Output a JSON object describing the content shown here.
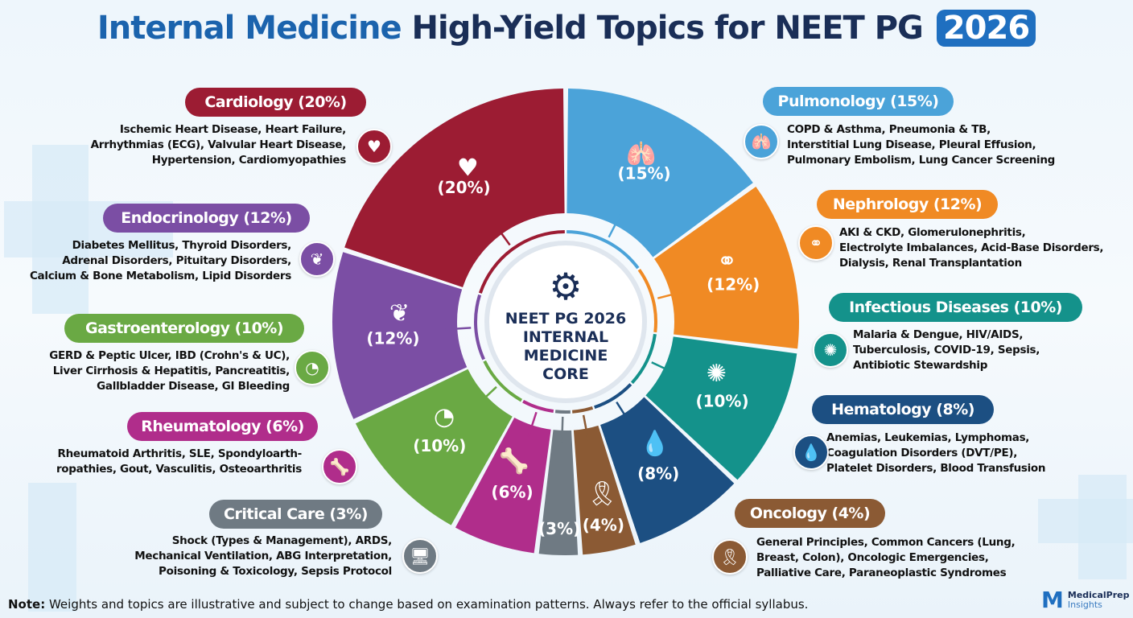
{
  "title": {
    "part1": "Internal Medicine",
    "part2": "High-Yield Topics for NEET PG",
    "year": "2026"
  },
  "center": {
    "icon": "gears-icon",
    "lines": [
      "NEET PG 2026",
      "INTERNAL",
      "MEDICINE",
      "CORE"
    ]
  },
  "segments": [
    {
      "key": "pulmonology",
      "percent": 15,
      "label": "(15%)",
      "color": "#4ba3d9",
      "icon": "lungs-icon",
      "glyph": "🫁"
    },
    {
      "key": "nephrology",
      "percent": 12,
      "label": "(12%)",
      "color": "#f08a24",
      "icon": "kidney-icon",
      "glyph": "⚭"
    },
    {
      "key": "infectious",
      "percent": 10,
      "label": "(10%)",
      "color": "#14928b",
      "icon": "microbe-icon",
      "glyph": "✺"
    },
    {
      "key": "hematology",
      "percent": 8,
      "label": "(8%)",
      "color": "#1c4f82",
      "icon": "blood-drop-microscope-icon",
      "glyph": "💧"
    },
    {
      "key": "oncology",
      "percent": 4,
      "label": "(4%)",
      "color": "#8b5a34",
      "icon": "ribbon-icon",
      "glyph": "🎗"
    },
    {
      "key": "critical",
      "percent": 3,
      "label": "(3%)",
      "color": "#6f7a83",
      "icon": "",
      "glyph": ""
    },
    {
      "key": "rheumatology",
      "percent": 6,
      "label": "(6%)",
      "color": "#b02d8b",
      "icon": "joint-icon",
      "glyph": "🦴"
    },
    {
      "key": "gastro",
      "percent": 10,
      "label": "(10%)",
      "color": "#6aa944",
      "icon": "stomach-icon",
      "glyph": "◔"
    },
    {
      "key": "endocrine",
      "percent": 12,
      "label": "(12%)",
      "color": "#7b4ea4",
      "icon": "thyroid-icon",
      "glyph": "❦"
    },
    {
      "key": "cardiology",
      "percent": 20,
      "label": "(20%)",
      "color": "#9c1c33",
      "icon": "heart-icon",
      "glyph": "♥"
    }
  ],
  "topics": {
    "cardiology": {
      "title": "Cardiology (20%)",
      "color": "#9c1c33",
      "icon": "heart-icon",
      "lines": [
        "Ischemic Heart Disease, Heart Failure,",
        "Arrhythmias (ECG), Valvular Heart Disease,",
        "Hypertension, Cardiomyopathies"
      ]
    },
    "endocrine": {
      "title": "Endocrinology (12%)",
      "color": "#7b4ea4",
      "icon": "thyroid-icon",
      "lines": [
        "Diabetes Mellitus, Thyroid Disorders,",
        "Adrenal Disorders, Pituitary Disorders,",
        "Calcium & Bone Metabolism, Lipid Disorders"
      ]
    },
    "gastro": {
      "title": "Gastroenterology (10%)",
      "color": "#6aa944",
      "icon": "stomach-icon",
      "lines": [
        "GERD & Peptic Ulcer, IBD (Crohn's & UC),",
        "Liver Cirrhosis & Hepatitis, Pancreatitis,",
        "Gallbladder Disease, GI Bleeding"
      ]
    },
    "rheumatology": {
      "title": "Rheumatology (6%)",
      "color": "#b02d8b",
      "icon": "joint-icon",
      "lines": [
        "Rheumatoid Arthritis, SLE, Spondyloarth-",
        "ropathies, Gout, Vasculitis, Osteoarthritis"
      ]
    },
    "critical": {
      "title": "Critical Care (3%)",
      "color": "#6f7a83",
      "icon": "monitor-icon",
      "lines": [
        "Shock (Types & Management), ARDS,",
        "Mechanical Ventilation, ABG Interpretation,",
        "Poisoning & Toxicology, Sepsis Protocol"
      ]
    },
    "pulmonology": {
      "title": "Pulmonology (15%)",
      "color": "#4ba3d9",
      "icon": "lungs-icon",
      "lines": [
        "COPD & Asthma, Pneumonia & TB,",
        "Interstitial Lung Disease, Pleural Effusion,",
        "Pulmonary Embolism, Lung Cancer Screening"
      ]
    },
    "nephrology": {
      "title": "Nephrology (12%)",
      "color": "#f08a24",
      "icon": "kidney-icon",
      "lines": [
        "AKI & CKD, Glomerulonephritis,",
        "Electrolyte Imbalances, Acid-Base Disorders,",
        "Dialysis, Renal Transplantation"
      ]
    },
    "infectious": {
      "title": "Infectious Diseases (10%)",
      "color": "#14928b",
      "icon": "microbe-icon",
      "lines": [
        "Malaria & Dengue, HIV/AIDS,",
        "Tuberculosis, COVID-19, Sepsis,",
        "Antibiotic Stewardship"
      ]
    },
    "hematology": {
      "title": "Hematology (8%)",
      "color": "#1c4f82",
      "icon": "blood-drop-icon",
      "lines": [
        "Anemias, Leukemias, Lymphomas,",
        "Coagulation Disorders (DVT/PE),",
        "Platelet Disorders, Blood Transfusion"
      ]
    },
    "oncology": {
      "title": "Oncology (4%)",
      "color": "#8b5a34",
      "icon": "ribbon-icon",
      "lines": [
        "General Principles, Common Cancers (Lung,",
        "Breast, Colon), Oncologic Emergencies,",
        "Palliative Care, Paraneoplastic Syndromes"
      ]
    }
  },
  "note": {
    "label": "Note:",
    "text": "Weights and topics are illustrative and subject to change based on examination patterns. Always refer to the official syllabus."
  },
  "logo": {
    "mark": "M",
    "line1": "MedicalPrep",
    "line2": "Insights"
  }
}
